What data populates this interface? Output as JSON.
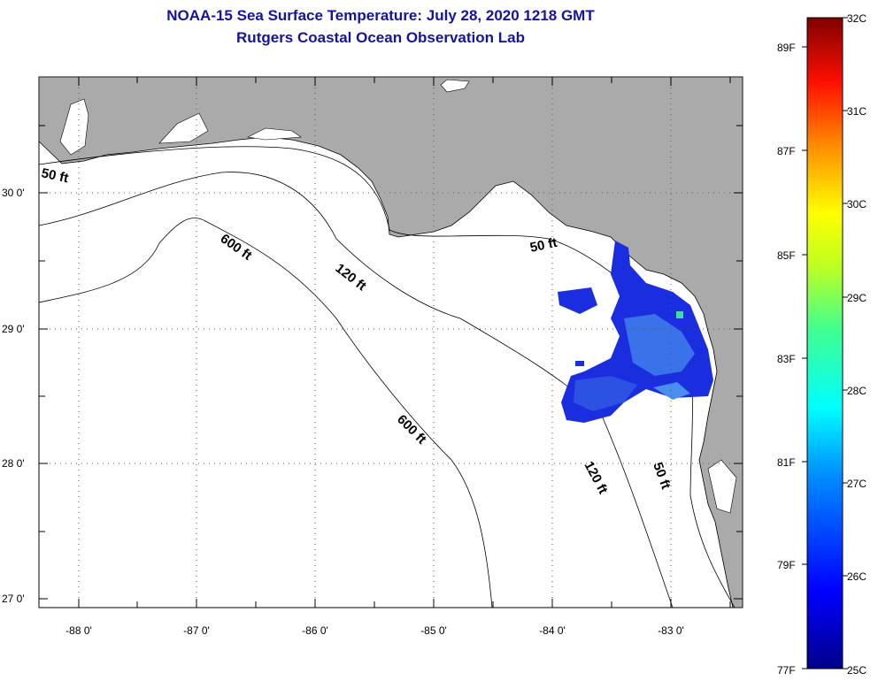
{
  "header": {
    "title_line1": "NOAA-15 Sea Surface Temperature:  July 28, 2020 1218 GMT",
    "title_line2": "Rutgers Coastal Ocean Observation Lab"
  },
  "map": {
    "lat_labels": [
      "30 0'",
      "29 0'",
      "28 0'",
      "27 0'"
    ],
    "lon_labels": [
      "-88 0'",
      "-87 0'",
      "-86 0'",
      "-85 0'",
      "-84 0'",
      "-83 0'"
    ],
    "contour_labels": [
      "50 ft",
      "600 ft",
      "120 ft",
      "50 ft",
      "600 ft",
      "120 ft",
      "50 ft"
    ],
    "colors": {
      "land": "#aaaaaa",
      "ocean": "#ffffff",
      "sst_low": "#1020d8",
      "sst_mid": "#3a70e8"
    }
  },
  "colorbar": {
    "celsius_labels": [
      "32C",
      "31C",
      "30C",
      "29C",
      "28C",
      "27C",
      "26C",
      "25C"
    ],
    "fahrenheit_labels": [
      "89F",
      "87F",
      "85F",
      "83F",
      "81F",
      "79F",
      "77F"
    ]
  }
}
